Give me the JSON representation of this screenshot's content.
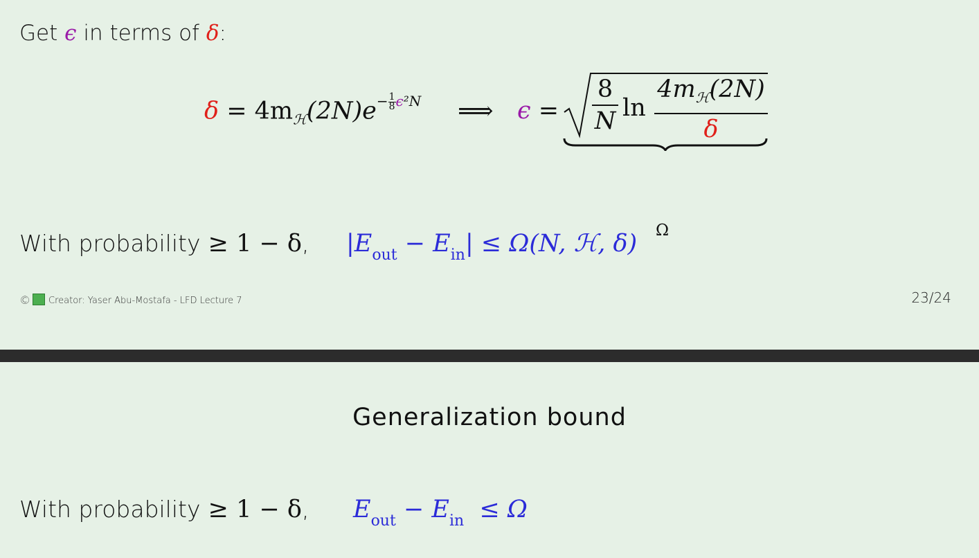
{
  "slide_a": {
    "intro": {
      "prefix": "Get",
      "eps": "ϵ",
      "middle": "in terms of",
      "delta": "δ",
      "suffix": ":"
    },
    "equation": {
      "lhs_delta": "δ",
      "lhs_rest": " = 4m",
      "lhs_sub": "ℋ",
      "lhs_paren": "(2N)e",
      "exp_minus": "−",
      "exp_num": "1",
      "exp_den": "8",
      "exp_eps": "ϵ",
      "exp_tail": "²N",
      "implies": "⟹",
      "rhs_eps": "ϵ",
      "rhs_eq": " =",
      "frac1_num": "8",
      "frac1_den": "N",
      "ln": "ln",
      "frac2_num": "4m",
      "frac2_sub": "ℋ",
      "frac2_num_tail": "(2N)",
      "frac2_den": "δ",
      "brace_label": "Ω"
    },
    "probability": {
      "lead": "With probability",
      "rel": " ≥ 1 − δ",
      "comma": ",",
      "bound": {
        "open": "|E",
        "sub1": "out",
        "minus": " − E",
        "sub2": "in",
        "close": "| ≤ Ω(N, ℋ, δ)"
      }
    },
    "footer": {
      "copyright": "©",
      "text": "Creator: Yaser Abu-Mostafa - LFD Lecture 7"
    },
    "page": {
      "current": "23",
      "sep": "/",
      "total": "24"
    }
  },
  "slide_b": {
    "title": "Generalization bound",
    "probability": {
      "lead": "With probability",
      "rel": " ≥ 1 − δ",
      "comma": ",",
      "bound": {
        "open": "E",
        "sub1": "out",
        "minus": " − E",
        "sub2": "in",
        "close": "  ≤ Ω"
      }
    }
  },
  "colors": {
    "epsilon": "#9a1aa8",
    "delta": "#e0201a",
    "bound_blue": "#2b2bd8",
    "background": "#e6f1e6",
    "divider": "#2c2c2c"
  }
}
